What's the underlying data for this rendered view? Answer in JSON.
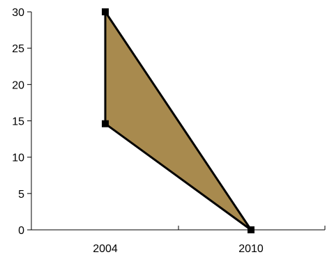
{
  "chart_data": {
    "type": "area",
    "title": "",
    "xlabel": "",
    "ylabel": "",
    "x_tick_labels": [
      "2004",
      "2010"
    ],
    "y_ticks": [
      0,
      5,
      10,
      15,
      20,
      25,
      30
    ],
    "ylim": [
      0,
      30
    ],
    "grid": false,
    "legend": "none",
    "series": [
      {
        "points": [
          {
            "x": "2004",
            "y": 30
          },
          {
            "x": "2010",
            "y": 0
          },
          {
            "x": "2004",
            "y": 14.6
          }
        ]
      }
    ],
    "colors": {
      "fill": "#a88a4e",
      "stroke": "#000000"
    }
  }
}
